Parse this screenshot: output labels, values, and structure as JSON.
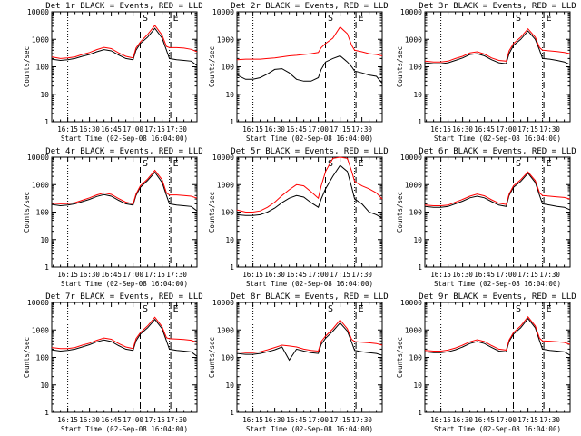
{
  "colors": {
    "events": "#000000",
    "lld": "#ff0000",
    "background": "#ffffff"
  },
  "shared": {
    "ylabel": "Counts/sec",
    "xlabel": "Start Time (02-Sep-08 16:04:00)",
    "time_start": "16:04",
    "time_end": "17:44",
    "ylim": [
      1,
      10000
    ],
    "yticks": [
      "1",
      "10",
      "100",
      "1000",
      "10000"
    ],
    "xticks": [
      "16:15",
      "16:30",
      "16:45",
      "17:00",
      "17:15",
      "17:30"
    ],
    "dotted_lines": [
      "16:15",
      "17:25"
    ],
    "dashed_lines": [
      "17:04",
      "17:25"
    ],
    "markers": {
      "left": "S",
      "right": "E"
    }
  },
  "chart_data": [
    {
      "type": "line",
      "title": "Det 1r BLACK = Events, RED = LLD",
      "x": [
        "16:04",
        "16:10",
        "16:15",
        "16:20",
        "16:25",
        "16:30",
        "16:35",
        "16:40",
        "16:45",
        "16:50",
        "16:55",
        "17:00",
        "17:02",
        "17:05",
        "17:10",
        "17:15",
        "17:20",
        "17:23",
        "17:25",
        "17:30",
        "17:35",
        "17:40",
        "17:44"
      ],
      "series": [
        {
          "name": "Events",
          "values": [
            190,
            170,
            180,
            200,
            240,
            280,
            350,
            420,
            380,
            270,
            200,
            180,
            400,
            700,
            1200,
            2500,
            1100,
            400,
            200,
            180,
            170,
            160,
            110
          ]
        },
        {
          "name": "LLD",
          "values": [
            230,
            200,
            210,
            230,
            280,
            330,
            420,
            510,
            460,
            320,
            240,
            210,
            480,
            800,
            1500,
            3200,
            1400,
            550,
            500,
            500,
            480,
            430,
            350
          ]
        }
      ]
    },
    {
      "type": "line",
      "title": "Det 2r BLACK = Events, RED = LLD",
      "x": [
        "16:04",
        "16:10",
        "16:15",
        "16:20",
        "16:25",
        "16:30",
        "16:35",
        "16:40",
        "16:45",
        "16:50",
        "16:55",
        "17:00",
        "17:02",
        "17:05",
        "17:10",
        "17:15",
        "17:20",
        "17:23",
        "17:25",
        "17:30",
        "17:35",
        "17:40",
        "17:44"
      ],
      "series": [
        {
          "name": "Events",
          "values": [
            50,
            35,
            35,
            40,
            55,
            80,
            85,
            60,
            35,
            30,
            30,
            40,
            80,
            150,
            200,
            250,
            150,
            100,
            70,
            60,
            50,
            45,
            25
          ]
        },
        {
          "name": "LLD",
          "values": [
            180,
            190,
            190,
            190,
            200,
            210,
            230,
            250,
            260,
            280,
            300,
            330,
            500,
            700,
            1100,
            2800,
            1600,
            600,
            400,
            350,
            300,
            280,
            250
          ]
        }
      ]
    },
    {
      "type": "line",
      "title": "Det 3r BLACK = Events, RED = LLD",
      "x": [
        "16:04",
        "16:10",
        "16:15",
        "16:20",
        "16:25",
        "16:30",
        "16:35",
        "16:40",
        "16:45",
        "16:50",
        "16:55",
        "17:00",
        "17:02",
        "17:05",
        "17:10",
        "17:15",
        "17:20",
        "17:23",
        "17:25",
        "17:30",
        "17:35",
        "17:40",
        "17:44"
      ],
      "series": [
        {
          "name": "Events",
          "values": [
            140,
            130,
            130,
            140,
            170,
            210,
            280,
            300,
            250,
            180,
            140,
            130,
            300,
            600,
            1000,
            2000,
            1000,
            400,
            200,
            190,
            170,
            150,
            120
          ]
        },
        {
          "name": "LLD",
          "values": [
            160,
            150,
            150,
            160,
            200,
            240,
            320,
            350,
            290,
            210,
            170,
            160,
            380,
            700,
            1200,
            2400,
            1200,
            500,
            400,
            380,
            360,
            330,
            300
          ]
        }
      ]
    },
    {
      "type": "line",
      "title": "Det 4r BLACK = Events, RED = LLD",
      "x": [
        "16:04",
        "16:10",
        "16:15",
        "16:20",
        "16:25",
        "16:30",
        "16:35",
        "16:40",
        "16:45",
        "16:50",
        "16:55",
        "17:00",
        "17:02",
        "17:05",
        "17:10",
        "17:15",
        "17:20",
        "17:23",
        "17:25",
        "17:30",
        "17:35",
        "17:40",
        "17:44"
      ],
      "series": [
        {
          "name": "Events",
          "values": [
            190,
            170,
            180,
            200,
            240,
            290,
            370,
            430,
            380,
            270,
            200,
            180,
            400,
            800,
            1400,
            2800,
            1200,
            400,
            200,
            180,
            170,
            160,
            110
          ]
        },
        {
          "name": "LLD",
          "values": [
            210,
            200,
            205,
            220,
            270,
            330,
            420,
            500,
            440,
            310,
            230,
            200,
            450,
            900,
            1600,
            3300,
            1500,
            500,
            420,
            420,
            400,
            380,
            320
          ]
        }
      ]
    },
    {
      "type": "line",
      "title": "Det 5r BLACK = Events, RED = LLD",
      "x": [
        "16:04",
        "16:10",
        "16:15",
        "16:20",
        "16:25",
        "16:30",
        "16:35",
        "16:40",
        "16:45",
        "16:50",
        "16:55",
        "17:00",
        "17:02",
        "17:05",
        "17:10",
        "17:15",
        "17:20",
        "17:23",
        "17:25",
        "17:30",
        "17:35",
        "17:40",
        "17:44"
      ],
      "series": [
        {
          "name": "Events",
          "values": [
            80,
            75,
            75,
            80,
            100,
            140,
            220,
            320,
            400,
            350,
            220,
            150,
            300,
            700,
            2000,
            5000,
            3000,
            800,
            300,
            200,
            100,
            80,
            60
          ]
        },
        {
          "name": "LLD",
          "values": [
            120,
            100,
            100,
            110,
            150,
            230,
            400,
            650,
            1000,
            900,
            550,
            320,
            900,
            3000,
            9000,
            10000,
            9000,
            3000,
            1300,
            900,
            700,
            500,
            300
          ]
        }
      ]
    },
    {
      "type": "line",
      "title": "Det 6r BLACK = Events, RED = LLD",
      "x": [
        "16:04",
        "16:10",
        "16:15",
        "16:20",
        "16:25",
        "16:30",
        "16:35",
        "16:40",
        "16:45",
        "16:50",
        "16:55",
        "17:00",
        "17:02",
        "17:05",
        "17:10",
        "17:15",
        "17:20",
        "17:23",
        "17:25",
        "17:30",
        "17:35",
        "17:40",
        "17:44"
      ],
      "series": [
        {
          "name": "Events",
          "values": [
            160,
            150,
            150,
            160,
            200,
            250,
            330,
            380,
            330,
            240,
            180,
            160,
            400,
            800,
            1300,
            2600,
            1200,
            400,
            200,
            180,
            160,
            150,
            120
          ]
        },
        {
          "name": "LLD",
          "values": [
            180,
            170,
            170,
            180,
            230,
            290,
            380,
            450,
            390,
            280,
            210,
            190,
            450,
            900,
            1500,
            2900,
            1400,
            500,
            400,
            380,
            360,
            340,
            300
          ]
        }
      ]
    },
    {
      "type": "line",
      "title": "Det 7r BLACK = Events, RED = LLD",
      "x": [
        "16:04",
        "16:10",
        "16:15",
        "16:20",
        "16:25",
        "16:30",
        "16:35",
        "16:40",
        "16:45",
        "16:50",
        "16:55",
        "17:00",
        "17:02",
        "17:05",
        "17:10",
        "17:15",
        "17:20",
        "17:23",
        "17:25",
        "17:30",
        "17:35",
        "17:40",
        "17:44"
      ],
      "series": [
        {
          "name": "Events",
          "values": [
            190,
            170,
            180,
            200,
            240,
            290,
            370,
            430,
            380,
            270,
            200,
            180,
            400,
            700,
            1200,
            2400,
            1100,
            400,
            200,
            180,
            170,
            160,
            110
          ]
        },
        {
          "name": "LLD",
          "values": [
            230,
            210,
            210,
            230,
            280,
            330,
            420,
            510,
            460,
            320,
            240,
            210,
            480,
            800,
            1400,
            2900,
            1300,
            520,
            480,
            470,
            450,
            420,
            350
          ]
        }
      ]
    },
    {
      "type": "line",
      "title": "Det 8r BLACK = Events, RED = LLD",
      "x": [
        "16:04",
        "16:10",
        "16:15",
        "16:20",
        "16:25",
        "16:30",
        "16:35",
        "16:40",
        "16:45",
        "16:50",
        "16:55",
        "17:00",
        "17:02",
        "17:05",
        "17:10",
        "17:15",
        "17:20",
        "17:23",
        "17:25",
        "17:30",
        "17:35",
        "17:40",
        "17:44"
      ],
      "series": [
        {
          "name": "Events",
          "values": [
            140,
            130,
            130,
            140,
            160,
            190,
            240,
            80,
            200,
            170,
            150,
            140,
            300,
            500,
            900,
            1800,
            900,
            350,
            180,
            160,
            150,
            140,
            120
          ]
        },
        {
          "name": "LLD",
          "values": [
            160,
            150,
            150,
            160,
            190,
            230,
            280,
            260,
            240,
            200,
            180,
            170,
            380,
            600,
            1100,
            2300,
            1100,
            450,
            380,
            360,
            340,
            320,
            280
          ]
        }
      ]
    },
    {
      "type": "line",
      "title": "Det 9r BLACK = Events, RED = LLD",
      "x": [
        "16:04",
        "16:10",
        "16:15",
        "16:20",
        "16:25",
        "16:30",
        "16:35",
        "16:40",
        "16:45",
        "16:50",
        "16:55",
        "17:00",
        "17:02",
        "17:05",
        "17:10",
        "17:15",
        "17:20",
        "17:23",
        "17:25",
        "17:30",
        "17:35",
        "17:40",
        "17:44"
      ],
      "series": [
        {
          "name": "Events",
          "values": [
            160,
            150,
            150,
            160,
            190,
            240,
            320,
            380,
            320,
            230,
            170,
            160,
            380,
            700,
            1200,
            2600,
            1200,
            400,
            200,
            180,
            170,
            160,
            120
          ]
        },
        {
          "name": "LLD",
          "values": [
            180,
            170,
            170,
            185,
            220,
            280,
            370,
            440,
            380,
            270,
            200,
            185,
            430,
            800,
            1400,
            3000,
            1400,
            500,
            400,
            390,
            370,
            350,
            300
          ]
        }
      ]
    }
  ]
}
